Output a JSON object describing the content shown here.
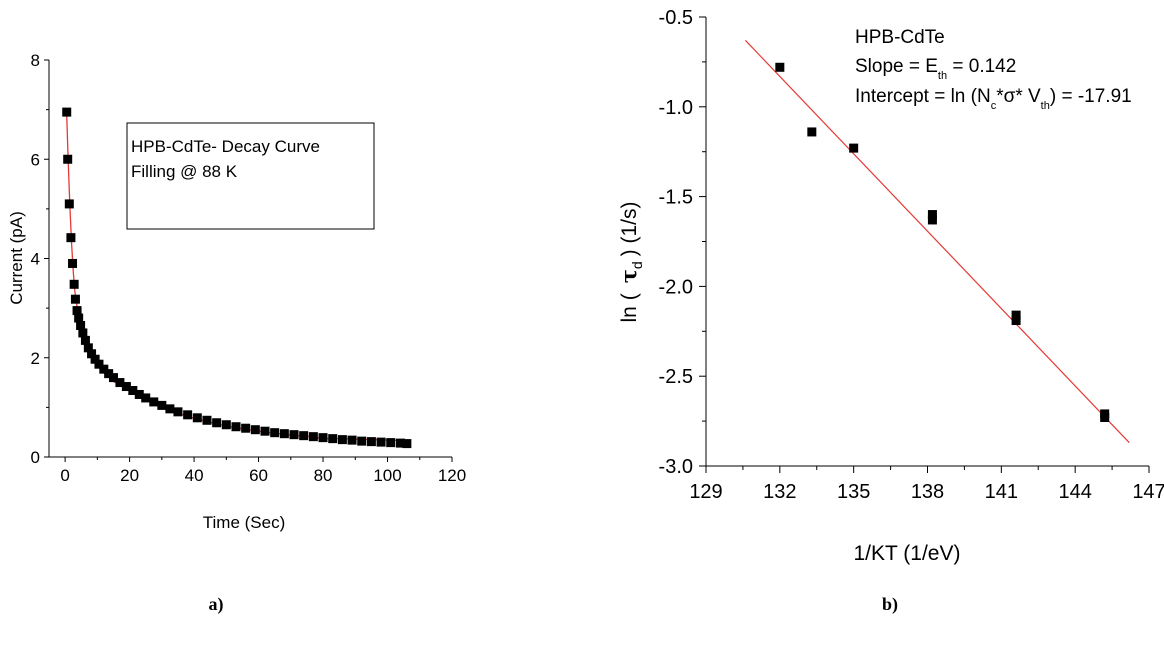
{
  "chart_data": [
    {
      "id": "a",
      "type": "scatter",
      "panel_label": "a)",
      "xlabel": "Time (Sec)",
      "ylabel": "Current (pA)",
      "xlim": [
        -5,
        120
      ],
      "ylim": [
        0,
        8
      ],
      "xticks": [
        0,
        20,
        40,
        60,
        80,
        100,
        120
      ],
      "yticks": [
        0,
        2,
        4,
        6,
        8
      ],
      "grid": false,
      "legend_lines": [
        "HPB-CdTe- Decay Curve",
        "Filling @ 88 K"
      ],
      "series": [
        {
          "marker": "square",
          "color": "#000000",
          "points": [
            [
              0.5,
              6.95
            ],
            [
              0.8,
              6.0
            ],
            [
              1.3,
              5.1
            ],
            [
              1.8,
              4.42
            ],
            [
              2.3,
              3.9
            ],
            [
              2.8,
              3.48
            ],
            [
              3.2,
              3.18
            ],
            [
              3.7,
              2.95
            ],
            [
              4.2,
              2.8
            ],
            [
              4.8,
              2.65
            ],
            [
              5.5,
              2.5
            ],
            [
              6.3,
              2.35
            ],
            [
              7.2,
              2.2
            ],
            [
              8.2,
              2.08
            ],
            [
              9.3,
              1.97
            ],
            [
              10.5,
              1.87
            ],
            [
              12,
              1.77
            ],
            [
              13.5,
              1.68
            ],
            [
              15,
              1.6
            ],
            [
              17,
              1.5
            ],
            [
              19,
              1.42
            ],
            [
              21,
              1.34
            ],
            [
              23,
              1.26
            ],
            [
              25,
              1.19
            ],
            [
              27.5,
              1.11
            ],
            [
              30,
              1.04
            ],
            [
              32.5,
              0.97
            ],
            [
              35,
              0.91
            ],
            [
              38,
              0.85
            ],
            [
              41,
              0.79
            ],
            [
              44,
              0.74
            ],
            [
              47,
              0.69
            ],
            [
              50,
              0.65
            ],
            [
              53,
              0.61
            ],
            [
              56,
              0.58
            ],
            [
              59,
              0.55
            ],
            [
              62,
              0.52
            ],
            [
              65,
              0.49
            ],
            [
              68,
              0.47
            ],
            [
              71,
              0.45
            ],
            [
              74,
              0.43
            ],
            [
              77,
              0.41
            ],
            [
              80,
              0.39
            ],
            [
              83,
              0.37
            ],
            [
              86,
              0.35
            ],
            [
              89,
              0.34
            ],
            [
              92,
              0.32
            ],
            [
              95,
              0.31
            ],
            [
              98,
              0.3
            ],
            [
              101,
              0.29
            ],
            [
              104,
              0.28
            ],
            [
              106,
              0.27
            ]
          ]
        },
        {
          "type": "line",
          "color": "#e53935",
          "points": [
            [
              0.5,
              6.9
            ],
            [
              1,
              5.9
            ],
            [
              1.5,
              5.0
            ],
            [
              2,
              4.3
            ],
            [
              2.5,
              3.75
            ],
            [
              3,
              3.35
            ],
            [
              4,
              2.9
            ],
            [
              5,
              2.6
            ],
            [
              6,
              2.4
            ],
            [
              8,
              2.1
            ],
            [
              10,
              1.88
            ],
            [
              12,
              1.72
            ],
            [
              15,
              1.52
            ],
            [
              18,
              1.42
            ],
            [
              22,
              1.28
            ],
            [
              26,
              1.12
            ],
            [
              30,
              1.0
            ],
            [
              35,
              0.88
            ],
            [
              40,
              0.78
            ],
            [
              45,
              0.7
            ],
            [
              50,
              0.62
            ],
            [
              55,
              0.57
            ],
            [
              60,
              0.52
            ],
            [
              65,
              0.48
            ],
            [
              70,
              0.44
            ],
            [
              75,
              0.42
            ],
            [
              80,
              0.37
            ],
            [
              85,
              0.37
            ],
            [
              90,
              0.36
            ],
            [
              95,
              0.35
            ],
            [
              100,
              0.34
            ],
            [
              106,
              0.33
            ]
          ]
        }
      ]
    },
    {
      "id": "b",
      "type": "scatter",
      "panel_label": "b)",
      "xlabel": "1/KT (1/eV)",
      "ylabel": "ln ( τ d ) (1/s)",
      "ylabel_parts": {
        "pre": "ln (",
        "tau": "τ",
        "sub": "d",
        "post": ") (1/s)"
      },
      "xlim": [
        129,
        147
      ],
      "ylim": [
        -3.0,
        -0.5
      ],
      "xticks": [
        129,
        132,
        135,
        138,
        141,
        144,
        147
      ],
      "yticks": [
        -3.0,
        -2.5,
        -2.0,
        -1.5,
        -1.0,
        -0.5
      ],
      "xtick_labels": [
        "129",
        "132",
        "135",
        "138",
        "141",
        "144",
        "147"
      ],
      "ytick_labels": [
        "-3.0",
        "-2.5",
        "-2.0",
        "-1.5",
        "-1.0",
        "-0.5"
      ],
      "grid": false,
      "annotation": {
        "line1": "HPB-CdTe",
        "line2": {
          "pre": "Slope = E",
          "sub": "th",
          "post": " = 0.142"
        },
        "line3": {
          "pre": "Intercept = ln (N",
          "sub1": "c",
          "mid": "*σ* V",
          "sub2": "th",
          "post": ") = -17.91"
        }
      },
      "series": [
        {
          "marker": "square",
          "color": "#000000",
          "points": [
            [
              132.0,
              -0.78
            ],
            [
              133.3,
              -1.14
            ],
            [
              135.0,
              -1.23
            ],
            [
              138.2,
              -1.6
            ],
            [
              138.2,
              -1.63
            ],
            [
              141.6,
              -2.16
            ],
            [
              141.6,
              -2.19
            ],
            [
              145.2,
              -2.71
            ],
            [
              145.2,
              -2.73
            ]
          ]
        },
        {
          "type": "line",
          "color": "#e53935",
          "points": [
            [
              130.6,
              -0.63
            ],
            [
              146.2,
              -2.87
            ]
          ]
        }
      ]
    }
  ]
}
